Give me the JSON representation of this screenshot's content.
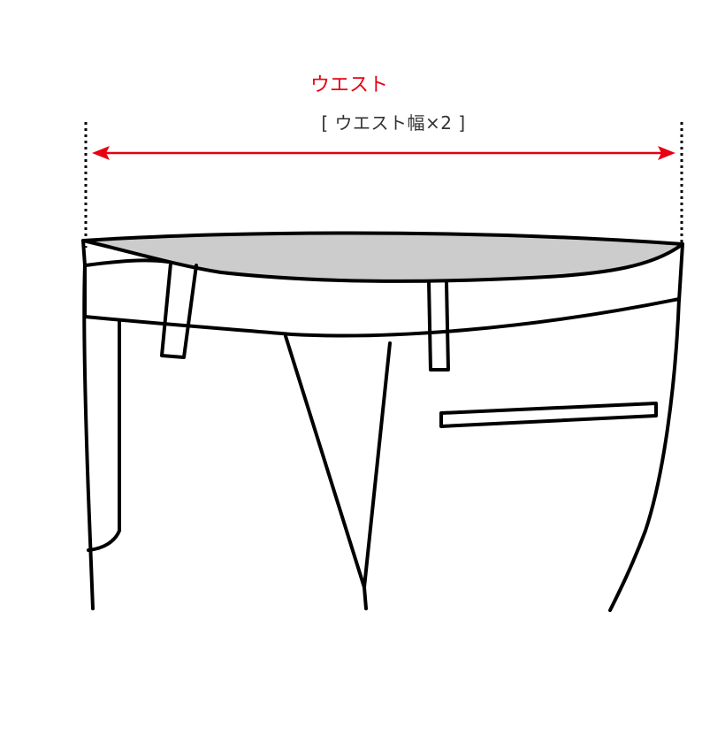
{
  "measurement": {
    "label": "ウエスト",
    "note": "[ ウエスト幅×2 ]",
    "color": "#e60012"
  },
  "garment": {
    "type": "pants-waist",
    "waistband_fill": "#cccccc",
    "outline_color": "#000000"
  }
}
